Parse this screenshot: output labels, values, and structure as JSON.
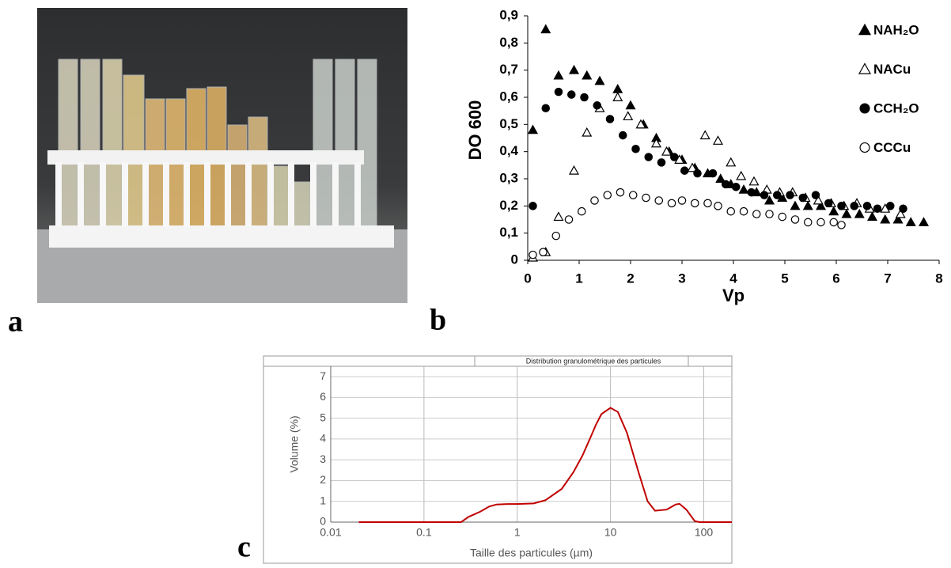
{
  "panel_labels": [
    "a",
    "b",
    "c"
  ],
  "chart_data": [
    {
      "type": "scatter",
      "x_label": "Vp",
      "y_label": "DO 600",
      "xlim": [
        0,
        8
      ],
      "xticks": [
        0,
        1,
        2,
        3,
        4,
        5,
        6,
        7,
        8
      ],
      "ylim": [
        0,
        0.9
      ],
      "yticks": [
        0,
        {
          "value": 0.1,
          "label": "0,1"
        },
        {
          "value": 0.2,
          "label": "0,2"
        },
        {
          "value": 0.3,
          "label": "0,3"
        },
        {
          "value": 0.4,
          "label": "0,4"
        },
        {
          "value": 0.5,
          "label": "0,5"
        },
        {
          "value": 0.6,
          "label": "0,6"
        },
        {
          "value": 0.7,
          "label": "0,7"
        },
        {
          "value": 0.8,
          "label": "0,8"
        },
        {
          "value": 0.9,
          "label": "0,9"
        }
      ],
      "legend": "upper right",
      "series": [
        {
          "name": "NAH₂O",
          "color": "#000000",
          "marker": "triangle",
          "filled": true,
          "x": [
            0.1,
            0.35,
            0.6,
            0.9,
            1.15,
            1.4,
            1.75,
            2.0,
            2.25,
            2.5,
            2.75,
            3.0,
            3.25,
            3.5,
            3.75,
            3.95,
            4.2,
            4.45,
            4.7,
            4.95,
            5.2,
            5.45,
            5.7,
            5.95,
            6.2,
            6.45,
            6.7,
            6.95,
            7.2,
            7.45,
            7.7
          ],
          "values": [
            0.48,
            0.85,
            0.68,
            0.7,
            0.68,
            0.66,
            0.63,
            0.57,
            0.5,
            0.45,
            0.4,
            0.37,
            0.34,
            0.32,
            0.3,
            0.28,
            0.26,
            0.25,
            0.22,
            0.23,
            0.2,
            0.2,
            0.2,
            0.18,
            0.17,
            0.17,
            0.16,
            0.15,
            0.15,
            0.14,
            0.14
          ]
        },
        {
          "name": "NACu",
          "color": "#000000",
          "marker": "triangle",
          "filled": false,
          "x": [
            0.1,
            0.35,
            0.6,
            0.9,
            1.15,
            1.4,
            1.75,
            1.95,
            2.2,
            2.5,
            2.7,
            2.95,
            3.2,
            3.45,
            3.7,
            3.95,
            4.15,
            4.4,
            4.65,
            4.9,
            5.15,
            5.4,
            5.65,
            5.9,
            6.15,
            6.4,
            6.65,
            6.95,
            7.25
          ],
          "values": [
            0.01,
            0.03,
            0.16,
            0.33,
            0.47,
            0.56,
            0.6,
            0.53,
            0.5,
            0.43,
            0.4,
            0.37,
            0.34,
            0.46,
            0.44,
            0.36,
            0.31,
            0.29,
            0.26,
            0.25,
            0.25,
            0.23,
            0.22,
            0.21,
            0.2,
            0.21,
            0.19,
            0.19,
            0.17
          ]
        },
        {
          "name": "CCH₂O",
          "color": "#000000",
          "marker": "circle",
          "filled": true,
          "x": [
            0.1,
            0.35,
            0.6,
            0.85,
            1.1,
            1.35,
            1.6,
            1.85,
            2.1,
            2.35,
            2.6,
            2.85,
            3.05,
            3.3,
            3.6,
            3.85,
            4.05,
            4.35,
            4.6,
            4.85,
            5.1,
            5.35,
            5.6,
            5.85,
            6.1,
            6.35,
            6.6,
            6.8,
            7.05,
            7.3
          ],
          "values": [
            0.2,
            0.56,
            0.62,
            0.61,
            0.6,
            0.57,
            0.52,
            0.46,
            0.41,
            0.38,
            0.36,
            0.38,
            0.33,
            0.32,
            0.32,
            0.28,
            0.27,
            0.25,
            0.24,
            0.24,
            0.24,
            0.23,
            0.24,
            0.21,
            0.2,
            0.2,
            0.2,
            0.19,
            0.2,
            0.19
          ]
        },
        {
          "name": "CCCu",
          "color": "#000000",
          "marker": "circle",
          "filled": false,
          "x": [
            0.1,
            0.3,
            0.55,
            0.8,
            1.05,
            1.3,
            1.55,
            1.8,
            2.05,
            2.3,
            2.55,
            2.8,
            3.0,
            3.25,
            3.5,
            3.7,
            3.95,
            4.2,
            4.45,
            4.7,
            4.95,
            5.2,
            5.45,
            5.7,
            5.95,
            6.1
          ],
          "values": [
            0.02,
            0.03,
            0.09,
            0.15,
            0.18,
            0.22,
            0.24,
            0.25,
            0.24,
            0.23,
            0.22,
            0.21,
            0.22,
            0.21,
            0.21,
            0.2,
            0.18,
            0.18,
            0.17,
            0.17,
            0.16,
            0.15,
            0.14,
            0.14,
            0.14,
            0.13
          ]
        }
      ]
    },
    {
      "type": "line",
      "title": "Distribution granulométrique des particules",
      "x_label": "Taille des particules (µm)",
      "y_label": "Volume (%)",
      "xscale": "log",
      "xlim": [
        0.01,
        200
      ],
      "xticks": [
        0.01,
        0.1,
        1,
        10,
        100
      ],
      "ylim": [
        0,
        7.5
      ],
      "yticks": [
        0,
        1,
        2,
        3,
        4,
        5,
        6,
        7
      ],
      "grid": true,
      "series": [
        {
          "color": "#c00000",
          "x": [
            0.02,
            0.25,
            0.3,
            0.4,
            0.5,
            0.6,
            0.8,
            1,
            1.5,
            2,
            3,
            4,
            5,
            6,
            7,
            8,
            10,
            12,
            15,
            20,
            25,
            30,
            40,
            50,
            55,
            65,
            80,
            90,
            200
          ],
          "values": [
            0,
            0,
            0.25,
            0.5,
            0.75,
            0.85,
            0.87,
            0.87,
            0.9,
            1.05,
            1.6,
            2.4,
            3.2,
            4.0,
            4.7,
            5.2,
            5.5,
            5.3,
            4.3,
            2.4,
            1.0,
            0.55,
            0.6,
            0.85,
            0.88,
            0.6,
            0.05,
            0,
            0
          ]
        }
      ]
    }
  ]
}
